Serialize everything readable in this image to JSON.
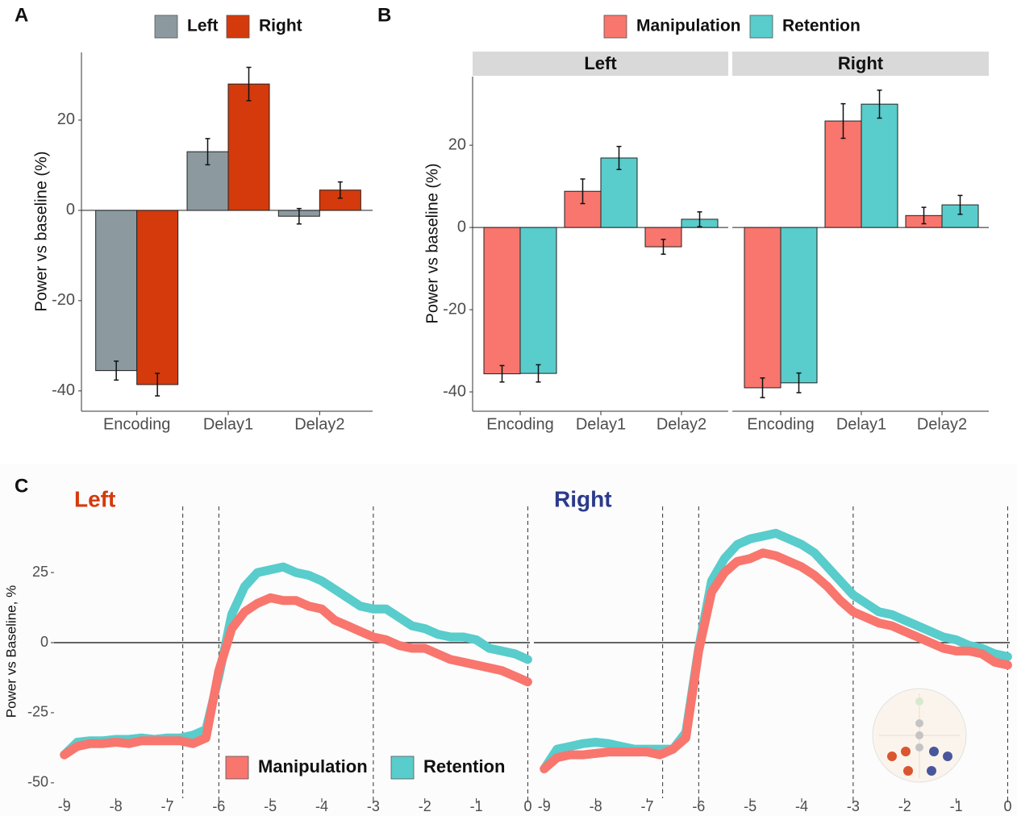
{
  "chart_data": [
    {
      "type": "bar",
      "panel": "A",
      "ylabel": "Power vs baseline (%)",
      "categories": [
        "Encoding",
        "Delay1",
        "Delay2"
      ],
      "series": [
        {
          "name": "Left",
          "color": "#8c9aa0",
          "values": [
            -35.5,
            13,
            -1.3
          ],
          "errors": [
            2.1,
            2.9,
            1.7
          ]
        },
        {
          "name": "Right",
          "color": "#d43a0c",
          "values": [
            -38.6,
            28,
            4.5
          ],
          "errors": [
            2.5,
            3.7,
            1.8
          ]
        }
      ],
      "ylim": [
        -44.5,
        35
      ],
      "yticks": [
        -40,
        -20,
        0,
        20
      ]
    },
    {
      "type": "faceted_bar",
      "panel": "B",
      "ylabel": "Power vs baseline (%)",
      "legend": [
        {
          "name": "Manipulation",
          "color": "#f8766d"
        },
        {
          "name": "Retention",
          "color": "#59cccc"
        }
      ],
      "categories": [
        "Encoding",
        "Delay1",
        "Delay2"
      ],
      "facets": [
        {
          "title": "Left",
          "series": [
            {
              "values": [
                -35.6,
                8.8,
                -4.7
              ],
              "errors": [
                2.0,
                3.0,
                1.8
              ]
            },
            {
              "values": [
                -35.5,
                16.9,
                2.0
              ],
              "errors": [
                2.1,
                2.8,
                1.8
              ]
            }
          ]
        },
        {
          "title": "Right",
          "series": [
            {
              "values": [
                -39,
                25.9,
                2.9
              ],
              "errors": [
                2.4,
                4.2,
                2.0
              ]
            },
            {
              "values": [
                -37.8,
                30,
                5.5
              ],
              "errors": [
                2.4,
                3.4,
                2.3
              ]
            }
          ]
        }
      ],
      "ylim": [
        -44.7,
        36.7
      ],
      "yticks": [
        -40,
        -20,
        0,
        20
      ]
    },
    {
      "type": "ribbon_line",
      "panel": "C",
      "ylabel": "Power vs Baseline, %",
      "legend": [
        {
          "name": "Manipulation",
          "color": "#f8766d"
        },
        {
          "name": "Retention",
          "color": "#59cccc"
        }
      ],
      "x": [
        -9,
        -8.75,
        -8.5,
        -8.25,
        -8,
        -7.75,
        -7.5,
        -7.25,
        -7,
        -6.75,
        -6.5,
        -6.25,
        -6,
        -5.75,
        -5.5,
        -5.25,
        -5,
        -4.75,
        -4.5,
        -4.25,
        -4,
        -3.75,
        -3.5,
        -3.25,
        -3,
        -2.75,
        -2.5,
        -2.25,
        -2,
        -1.75,
        -1.5,
        -1.25,
        -1,
        -0.75,
        -0.5,
        -0.25,
        0
      ],
      "facets": [
        {
          "title": "Left",
          "title_color": "#d43a0c",
          "series": [
            {
              "values": [
                -40,
                -37,
                -36,
                -36,
                -35.5,
                -36,
                -35,
                -35,
                -35,
                -35,
                -36,
                -34,
                -10,
                5,
                11,
                14,
                16,
                15,
                15,
                13,
                12,
                8,
                6,
                4,
                2,
                1,
                -1,
                -2,
                -2,
                -4,
                -6,
                -7,
                -8,
                -9,
                -10,
                -12,
                -14
              ]
            },
            {
              "values": [
                -40,
                -35.5,
                -35,
                -35,
                -34.5,
                -34.5,
                -34,
                -34.5,
                -34,
                -34,
                -33,
                -31,
                -12,
                10,
                20,
                25,
                26,
                27,
                25,
                24,
                22,
                19,
                16,
                13,
                12,
                12,
                9,
                6,
                5,
                3,
                2,
                2,
                1,
                -2,
                -3,
                -4,
                -6
              ]
            }
          ]
        },
        {
          "title": "Right",
          "title_color": "#2b3a8c",
          "series": [
            {
              "values": [
                -45,
                -41,
                -40,
                -40,
                -39.5,
                -39,
                -39,
                -39,
                -39,
                -40,
                -38,
                -34,
                -3,
                18,
                25,
                29,
                30,
                32,
                31,
                29,
                27,
                24,
                20,
                15,
                11,
                9,
                7,
                6,
                4,
                2,
                0,
                -2,
                -3,
                -3,
                -4,
                -7,
                -8
              ]
            },
            {
              "values": [
                -45,
                -38,
                -37,
                -36,
                -35.5,
                -36,
                -37,
                -38,
                -38,
                -38,
                -38,
                -32,
                -2,
                22,
                30,
                35,
                37,
                38,
                39,
                37,
                35,
                32,
                27,
                22,
                17,
                14,
                11,
                10,
                8,
                6,
                4,
                2,
                1,
                -1,
                -2,
                -4,
                -5
              ]
            }
          ]
        }
      ],
      "xlim": [
        -9.2,
        0.04
      ],
      "xticks": [
        -9,
        -8,
        -7,
        -6,
        -5,
        -4,
        -3,
        -2,
        -1,
        0
      ],
      "ylim": [
        -55.5,
        48.6
      ],
      "yticks": [
        -50,
        -25,
        0,
        25
      ],
      "vlines": [
        -6.7,
        -6,
        -3,
        0
      ]
    }
  ]
}
